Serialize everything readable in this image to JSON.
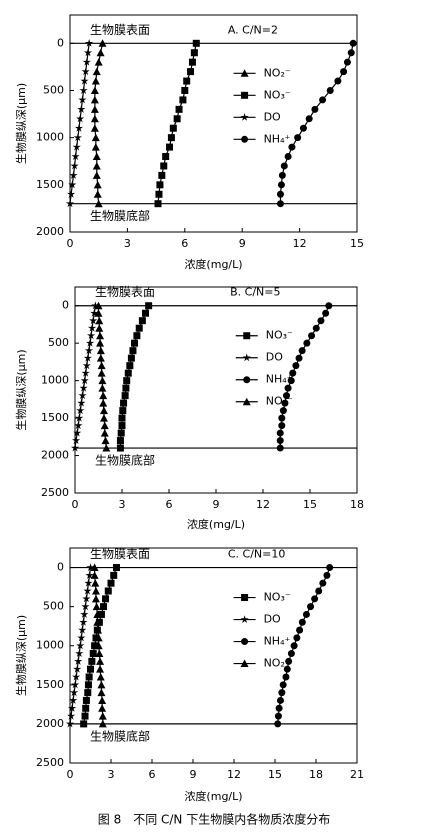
{
  "chart_data": [
    {
      "type": "line",
      "title": "A. C/N=2",
      "xlabel": "浓度(mg/L)",
      "ylabel": "生物膜纵深(μm)",
      "y_inverted": true,
      "xlim": [
        0,
        15
      ],
      "xticks": [
        0,
        3,
        6,
        9,
        12,
        15
      ],
      "ylim": [
        -300,
        2000
      ],
      "yticks": [
        0,
        500,
        1000,
        1500,
        2000
      ],
      "boundaries": [
        {
          "value": 0,
          "label": "生物膜表面"
        },
        {
          "value": 1700,
          "label": "生物膜底部"
        }
      ],
      "y": [
        0,
        100,
        200,
        300,
        400,
        500,
        600,
        700,
        800,
        900,
        1000,
        1100,
        1200,
        1300,
        1400,
        1500,
        1600,
        1700
      ],
      "series": [
        {
          "name": "NO₂⁻",
          "color": "#000000",
          "marker": "triangle",
          "values": [
            1.7,
            1.6,
            1.5,
            1.4,
            1.35,
            1.3,
            1.3,
            1.3,
            1.3,
            1.3,
            1.35,
            1.35,
            1.4,
            1.4,
            1.4,
            1.45,
            1.45,
            1.5
          ]
        },
        {
          "name": "NO₃⁻",
          "color": "#000000",
          "marker": "square",
          "values": [
            6.6,
            6.5,
            6.4,
            6.3,
            6.1,
            6.0,
            5.9,
            5.7,
            5.6,
            5.4,
            5.3,
            5.2,
            5.0,
            4.9,
            4.8,
            4.7,
            4.65,
            4.6
          ]
        },
        {
          "name": "DO",
          "color": "#000000",
          "marker": "star",
          "values": [
            1.0,
            0.94,
            0.88,
            0.82,
            0.76,
            0.71,
            0.65,
            0.59,
            0.53,
            0.47,
            0.41,
            0.35,
            0.29,
            0.24,
            0.18,
            0.12,
            0.06,
            0
          ]
        },
        {
          "name": "NH₄⁺",
          "color": "#000000",
          "marker": "circle",
          "values": [
            14.8,
            14.7,
            14.5,
            14.3,
            14.0,
            13.6,
            13.2,
            12.8,
            12.5,
            12.2,
            11.9,
            11.6,
            11.4,
            11.2,
            11.1,
            11.05,
            11.0,
            11.0
          ]
        }
      ]
    },
    {
      "type": "line",
      "title": "B. C/N=5",
      "xlabel": "浓度(mg/L)",
      "ylabel": "生物膜纵深(μm)",
      "y_inverted": true,
      "xlim": [
        0,
        18
      ],
      "xticks": [
        0,
        3,
        6,
        9,
        12,
        15,
        18
      ],
      "ylim": [
        -250,
        2500
      ],
      "yticks": [
        0,
        500,
        1000,
        1500,
        2000,
        2500
      ],
      "boundaries": [
        {
          "value": 0,
          "label": "生物膜表面"
        },
        {
          "value": 1900,
          "label": "生物膜底部"
        }
      ],
      "y": [
        0,
        100,
        200,
        300,
        400,
        500,
        600,
        700,
        800,
        900,
        1000,
        1100,
        1200,
        1300,
        1400,
        1500,
        1600,
        1700,
        1800,
        1900
      ],
      "series": [
        {
          "name": "NO₃⁻",
          "color": "#000000",
          "marker": "square",
          "values": [
            4.7,
            4.5,
            4.3,
            4.1,
            3.95,
            3.8,
            3.7,
            3.6,
            3.5,
            3.4,
            3.3,
            3.25,
            3.2,
            3.1,
            3.05,
            3.0,
            3.0,
            2.95,
            2.9,
            2.9
          ]
        },
        {
          "name": "DO",
          "color": "#000000",
          "marker": "star",
          "values": [
            1.3,
            1.23,
            1.16,
            1.09,
            1.03,
            0.96,
            0.89,
            0.82,
            0.75,
            0.68,
            0.62,
            0.55,
            0.48,
            0.41,
            0.34,
            0.27,
            0.21,
            0.14,
            0.07,
            0
          ]
        },
        {
          "name": "NH₄⁺",
          "color": "#000000",
          "marker": "circle",
          "values": [
            16.2,
            16.0,
            15.7,
            15.4,
            15.1,
            14.8,
            14.5,
            14.3,
            14.1,
            13.9,
            13.8,
            13.6,
            13.5,
            13.4,
            13.3,
            13.2,
            13.2,
            13.1,
            13.1,
            13.1
          ]
        },
        {
          "name": "NO₂⁻",
          "color": "#000000",
          "marker": "triangle",
          "values": [
            1.5,
            1.5,
            1.55,
            1.55,
            1.6,
            1.6,
            1.65,
            1.65,
            1.7,
            1.7,
            1.75,
            1.75,
            1.8,
            1.8,
            1.85,
            1.85,
            1.9,
            1.9,
            1.95,
            2.0
          ]
        }
      ]
    },
    {
      "type": "line",
      "title": "C. C/N=10",
      "xlabel": "浓度(mg/L)",
      "ylabel": "生物膜纵深(μm)",
      "y_inverted": true,
      "xlim": [
        0,
        21
      ],
      "xticks": [
        0,
        3,
        6,
        9,
        12,
        15,
        18,
        21
      ],
      "ylim": [
        -250,
        2500
      ],
      "yticks": [
        0,
        500,
        1000,
        1500,
        2000,
        2500
      ],
      "boundaries": [
        {
          "value": 0,
          "label": "生物膜表面"
        },
        {
          "value": 2000,
          "label": "生物膜底部"
        }
      ],
      "y": [
        0,
        100,
        200,
        300,
        400,
        500,
        600,
        700,
        800,
        900,
        1000,
        1100,
        1200,
        1300,
        1400,
        1500,
        1600,
        1700,
        1800,
        1900,
        2000
      ],
      "series": [
        {
          "name": "NO₃⁻",
          "color": "#000000",
          "marker": "square",
          "values": [
            3.4,
            3.2,
            3.0,
            2.8,
            2.6,
            2.45,
            2.3,
            2.15,
            2.0,
            1.9,
            1.8,
            1.7,
            1.6,
            1.5,
            1.4,
            1.35,
            1.3,
            1.2,
            1.15,
            1.1,
            1.0
          ]
        },
        {
          "name": "DO",
          "color": "#000000",
          "marker": "star",
          "values": [
            1.5,
            1.43,
            1.35,
            1.28,
            1.2,
            1.13,
            1.05,
            0.98,
            0.9,
            0.83,
            0.75,
            0.68,
            0.6,
            0.53,
            0.45,
            0.38,
            0.3,
            0.23,
            0.15,
            0.08,
            0
          ]
        },
        {
          "name": "NH₄⁺",
          "color": "#000000",
          "marker": "circle",
          "values": [
            19.0,
            18.8,
            18.5,
            18.2,
            17.9,
            17.6,
            17.3,
            17.0,
            16.8,
            16.6,
            16.4,
            16.2,
            16.0,
            15.9,
            15.8,
            15.6,
            15.5,
            15.4,
            15.3,
            15.25,
            15.2
          ]
        },
        {
          "name": "NO₂⁻",
          "color": "#000000",
          "marker": "triangle",
          "values": [
            1.8,
            1.8,
            1.85,
            1.9,
            1.9,
            1.95,
            2.0,
            2.0,
            2.05,
            2.1,
            2.1,
            2.15,
            2.2,
            2.2,
            2.25,
            2.3,
            2.3,
            2.35,
            2.35,
            2.4,
            2.4
          ]
        }
      ]
    }
  ],
  "caption": "图 8　不同 C/N 下生物膜内各物质浓度分布"
}
